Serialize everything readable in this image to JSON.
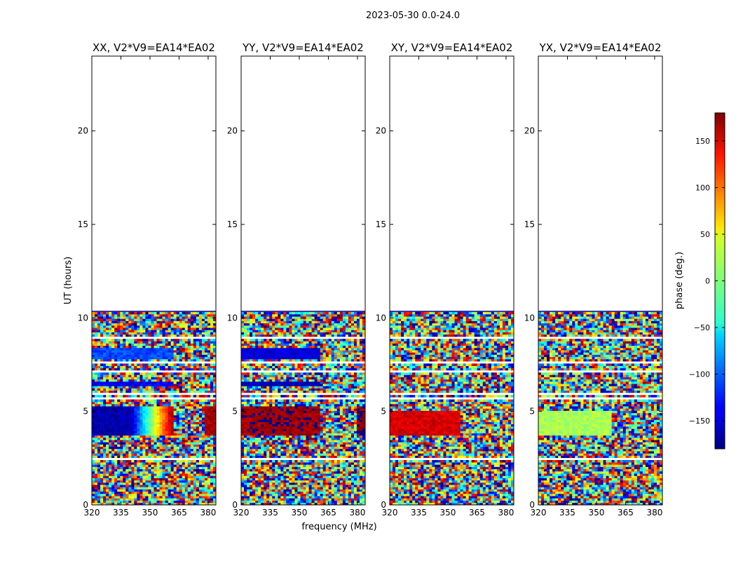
{
  "figure_title": "2023-05-30 0.0-24.0",
  "chart_data": {
    "type": "heatmap",
    "title": "2023-05-30 0.0-24.0",
    "xlabel": "frequency (MHz)",
    "ylabel": "UT (hours)",
    "x_ticks": [
      320,
      335,
      350,
      365,
      380
    ],
    "y_ticks": [
      0,
      5,
      10,
      15,
      20
    ],
    "xlim": [
      320,
      384
    ],
    "ylim": [
      0,
      24
    ],
    "data_extent_hours": [
      0,
      10.4
    ],
    "colorbar": {
      "label": "phase (deg.)",
      "ticks": [
        150,
        100,
        50,
        0,
        -50,
        -100,
        -150
      ],
      "tick_labels": [
        "150",
        "100",
        "50",
        "0",
        "−50",
        "−100",
        "−150"
      ],
      "range": [
        -180,
        180
      ],
      "colormap": "jet"
    },
    "panels": [
      {
        "title": "XX, V2*V9=EA14*EA02",
        "features": [
          {
            "t0": 3.65,
            "t1": 5.2,
            "f0": 320,
            "f1": 362,
            "phase": -165,
            "grad_to": 175,
            "grad_from": 340
          },
          {
            "t0": 3.65,
            "t1": 5.2,
            "f0": 378,
            "f1": 384,
            "phase": 165
          },
          {
            "t0": 7.7,
            "t1": 8.3,
            "f0": 320,
            "f1": 362,
            "phase": -110
          },
          {
            "t0": 6.3,
            "t1": 6.55,
            "f0": 320,
            "f1": 362,
            "phase": -140
          }
        ]
      },
      {
        "title": "YY, V2*V9=EA14*EA02",
        "features": [
          {
            "t0": 3.65,
            "t1": 5.2,
            "f0": 320,
            "f1": 361,
            "phase": 170
          },
          {
            "t0": 3.65,
            "t1": 5.2,
            "f0": 379,
            "f1": 384,
            "phase": 175
          },
          {
            "t0": 7.7,
            "t1": 8.3,
            "f0": 320,
            "f1": 361,
            "phase": -150
          },
          {
            "t0": 6.3,
            "t1": 6.55,
            "f0": 320,
            "f1": 361,
            "phase": -160
          }
        ]
      },
      {
        "title": "XY, V2*V9=EA14*EA02",
        "features": [
          {
            "t0": 3.65,
            "t1": 5.0,
            "f0": 320,
            "f1": 356,
            "phase": 150
          }
        ]
      },
      {
        "title": "YX, V2*V9=EA14*EA02",
        "features": [
          {
            "t0": 3.65,
            "t1": 5.0,
            "f0": 320,
            "f1": 358,
            "phase": 15
          }
        ]
      }
    ]
  }
}
